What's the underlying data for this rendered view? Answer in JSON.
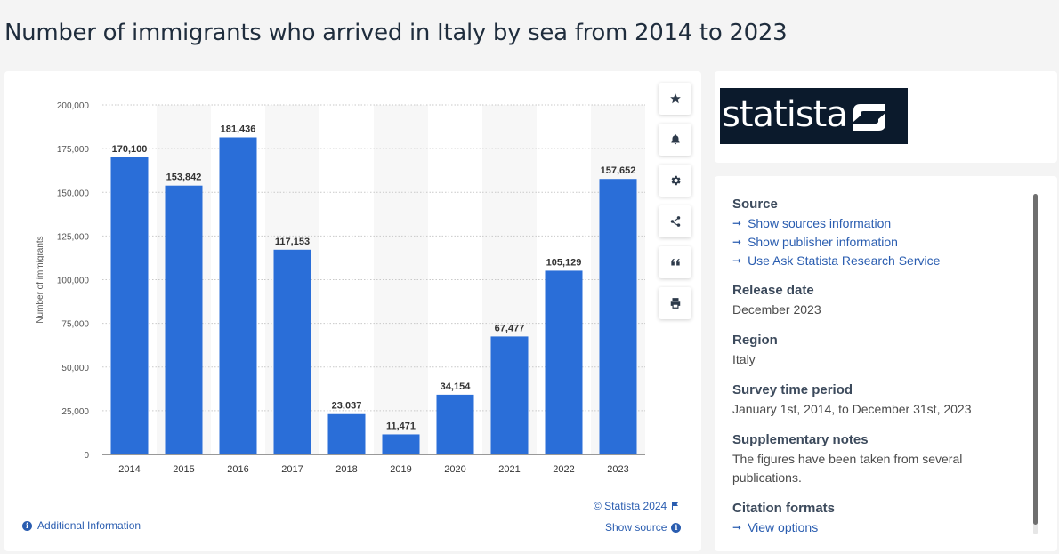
{
  "page_title": "Number of immigrants who arrived in Italy by sea from 2014 to 2023",
  "chart_data": {
    "type": "bar",
    "title": "",
    "xlabel": "",
    "ylabel": "Number of immigrants",
    "categories": [
      "2014",
      "2015",
      "2016",
      "2017",
      "2018",
      "2019",
      "2020",
      "2021",
      "2022",
      "2023"
    ],
    "values": [
      170100,
      153842,
      181436,
      117153,
      23037,
      11471,
      34154,
      67477,
      105129,
      157652
    ],
    "value_labels": [
      "170,100",
      "153,842",
      "181,436",
      "117,153",
      "23,037",
      "11,471",
      "34,154",
      "67,477",
      "105,129",
      "157,652"
    ],
    "ylim": [
      0,
      200000
    ],
    "yticks": [
      0,
      25000,
      50000,
      75000,
      100000,
      125000,
      150000,
      175000,
      200000
    ],
    "ytick_labels": [
      "0",
      "25,000",
      "50,000",
      "75,000",
      "100,000",
      "125,000",
      "150,000",
      "175,000",
      "200,000"
    ],
    "bar_color": "#2a6ed8",
    "grid": true,
    "legend": "none"
  },
  "toolbar": {
    "buttons": [
      {
        "name": "favorite",
        "icon": "star-icon"
      },
      {
        "name": "notify",
        "icon": "bell-icon"
      },
      {
        "name": "settings",
        "icon": "gear-icon"
      },
      {
        "name": "share",
        "icon": "share-icon"
      },
      {
        "name": "cite",
        "icon": "quote-icon"
      },
      {
        "name": "print",
        "icon": "print-icon"
      }
    ]
  },
  "footer": {
    "copyright": "© Statista 2024",
    "show_source": "Show source",
    "additional_info": "Additional Information"
  },
  "logo": {
    "text": "statista"
  },
  "sidebar": {
    "source_heading": "Source",
    "source_links": [
      "Show sources information",
      "Show publisher information",
      "Use Ask Statista Research Service"
    ],
    "release_heading": "Release date",
    "release_value": "December 2023",
    "region_heading": "Region",
    "region_value": "Italy",
    "survey_heading": "Survey time period",
    "survey_value": "January 1st, 2014, to December 31st, 2023",
    "notes_heading": "Supplementary notes",
    "notes_value": "The figures have been taken from several publications.",
    "citation_heading": "Citation formats",
    "citation_link": "View options"
  },
  "colors": {
    "accent": "#2a5db0",
    "bar": "#2a6ed8",
    "title": "#1f2d3d",
    "logo_bg": "#0b1a2c"
  }
}
